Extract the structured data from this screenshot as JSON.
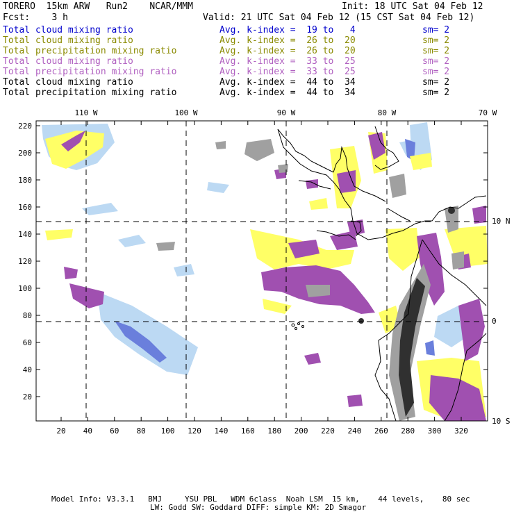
{
  "header": {
    "model": "TORERO  15km ARW   Run2    NCAR/MMM",
    "init": "Init: 18 UTC Sat 04 Feb 12",
    "fcst": "Fcst:    3 h",
    "valid": "Valid: 21 UTC Sat 04 Feb 12 (15 CST Sat 04 Feb 12)"
  },
  "legend": [
    {
      "field": "Total cloud mixing ratio",
      "kidx": "Avg. k-index =  19 to   4",
      "sm": "sm= 2",
      "color": "#0000cc"
    },
    {
      "field": "Total cloud mixing ratio",
      "kidx": "Avg. k-index =  26 to  20",
      "sm": "sm= 2",
      "color": "#8a8a00"
    },
    {
      "field": "Total precipitation mixing ratio",
      "kidx": "Avg. k-index =  26 to  20",
      "sm": "sm= 2",
      "color": "#8a8a00"
    },
    {
      "field": "Total cloud mixing ratio",
      "kidx": "Avg. k-index =  33 to  25",
      "sm": "sm= 2",
      "color": "#b060c0"
    },
    {
      "field": "Total precipitation mixing ratio",
      "kidx": "Avg. k-index =  33 to  25",
      "sm": "sm= 2",
      "color": "#b060c0"
    },
    {
      "field": "Total cloud mixing ratio",
      "kidx": "Avg. k-index =  44 to  34",
      "sm": "sm= 2",
      "color": "#000000"
    },
    {
      "field": "Total precipitation mixing ratio",
      "kidx": "Avg. k-index =  44 to  34",
      "sm": "sm= 2",
      "color": "#000000"
    }
  ],
  "map": {
    "lon_labels": [
      "110 W",
      "100 W",
      "90 W",
      "80 W",
      "70 W"
    ],
    "lat_labels": [
      "10 N",
      "0",
      "10 S"
    ],
    "x_ticks": [
      "20",
      "40",
      "60",
      "80",
      "100",
      "120",
      "140",
      "160",
      "180",
      "200",
      "220",
      "240",
      "260",
      "280",
      "300",
      "320"
    ],
    "y_ticks": [
      "220",
      "200",
      "180",
      "160",
      "140",
      "120",
      "100",
      "80",
      "60",
      "40",
      "20"
    ],
    "colors": {
      "blue": "#b8d8f4",
      "blue_dark": "#6a7fdc",
      "yellow": "#ffff66",
      "purple": "#a050b0",
      "purple_light": "#c890d0",
      "gray": "#a8a8a8",
      "gray_dark": "#404040"
    }
  },
  "footer": {
    "line1": "Model Info: V3.3.1   BMJ     YSU PBL   WDM 6class  Noah LSM  15 km,    44 levels,    80 sec",
    "line2": "LW: Godd SW: Goddard DIFF: simple KM: 2D Smagor"
  }
}
